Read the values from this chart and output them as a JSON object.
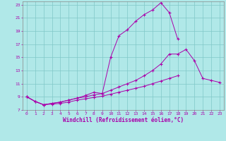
{
  "xlabel": "Windchill (Refroidissement éolien,°C)",
  "background_color": "#b0e8e8",
  "grid_color": "#80c8c8",
  "line_color": "#aa00aa",
  "xlim": [
    -0.5,
    23.5
  ],
  "ylim": [
    7,
    23.5
  ],
  "xticks": [
    0,
    1,
    2,
    3,
    4,
    5,
    6,
    7,
    8,
    9,
    10,
    11,
    12,
    13,
    14,
    15,
    16,
    17,
    18,
    19,
    20,
    21,
    22,
    23
  ],
  "yticks": [
    7,
    9,
    11,
    13,
    15,
    17,
    19,
    21,
    23
  ],
  "line1_x": [
    0,
    1,
    2,
    3,
    4,
    5,
    6,
    7,
    8,
    9,
    10,
    11,
    12,
    13,
    14,
    15,
    16,
    17,
    18
  ],
  "line1_y": [
    9.0,
    8.3,
    7.8,
    8.0,
    8.2,
    8.5,
    8.8,
    9.2,
    9.7,
    9.5,
    15.0,
    18.3,
    19.2,
    20.5,
    21.5,
    22.2,
    23.3,
    21.8,
    17.8
  ],
  "line2_x": [
    0,
    1,
    2,
    3,
    4,
    5,
    6,
    7,
    8,
    9,
    10,
    11,
    12,
    13,
    14,
    15,
    16,
    17,
    18,
    19,
    20,
    21,
    22,
    23
  ],
  "line2_y": [
    9.0,
    8.3,
    7.8,
    8.0,
    8.2,
    8.5,
    8.8,
    9.0,
    9.3,
    9.5,
    10.0,
    10.5,
    11.0,
    11.5,
    12.2,
    13.0,
    14.0,
    15.5,
    15.5,
    16.2,
    14.5,
    11.8,
    11.5,
    11.2
  ],
  "line3_x": [
    0,
    1,
    2,
    3,
    4,
    5,
    6,
    7,
    8,
    9,
    10,
    11,
    12,
    13,
    14,
    15,
    16,
    17,
    18
  ],
  "line3_y": [
    9.0,
    8.3,
    7.8,
    7.9,
    8.0,
    8.2,
    8.5,
    8.7,
    8.9,
    9.1,
    9.4,
    9.7,
    10.0,
    10.3,
    10.6,
    11.0,
    11.4,
    11.8,
    12.2
  ],
  "tick_fontsize": 4.5,
  "xlabel_fontsize": 5.5
}
